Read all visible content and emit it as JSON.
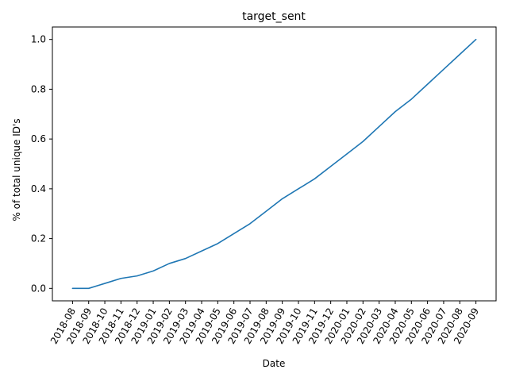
{
  "chart_data": {
    "type": "line",
    "title": "target_sent",
    "xlabel": "Date",
    "ylabel": "% of total unique ID's",
    "x": [
      "2018-08",
      "2018-09",
      "2018-10",
      "2018-11",
      "2018-12",
      "2019-01",
      "2019-02",
      "2019-03",
      "2019-04",
      "2019-05",
      "2019-06",
      "2019-07",
      "2019-08",
      "2019-09",
      "2019-10",
      "2019-11",
      "2019-12",
      "2020-01",
      "2020-02",
      "2020-03",
      "2020-04",
      "2020-05",
      "2020-06",
      "2020-07",
      "2020-08",
      "2020-09"
    ],
    "series": [
      {
        "color": "#1f77b4",
        "values": [
          0.0,
          0.0,
          0.02,
          0.04,
          0.05,
          0.07,
          0.1,
          0.12,
          0.15,
          0.18,
          0.22,
          0.26,
          0.31,
          0.36,
          0.4,
          0.44,
          0.49,
          0.54,
          0.59,
          0.65,
          0.71,
          0.76,
          0.82,
          0.88,
          0.94,
          1.0
        ]
      }
    ],
    "yticks": [
      "0.0",
      "0.2",
      "0.4",
      "0.6",
      "0.8",
      "1.0"
    ],
    "ylim": [
      -0.05,
      1.05
    ],
    "grid": false,
    "legend": "none"
  }
}
